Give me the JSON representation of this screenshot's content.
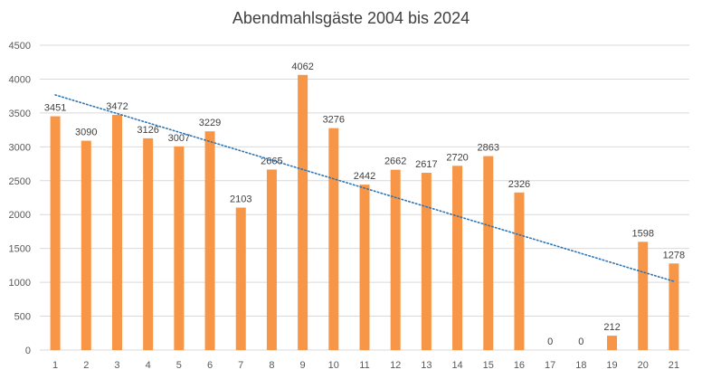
{
  "chart_data": {
    "type": "bar",
    "title": "Abendmahlsgäste 2004 bis 2024",
    "xlabel": "",
    "ylabel": "",
    "categories": [
      "1",
      "2",
      "3",
      "4",
      "5",
      "6",
      "7",
      "8",
      "9",
      "10",
      "11",
      "12",
      "13",
      "14",
      "15",
      "16",
      "17",
      "18",
      "19",
      "20",
      "21"
    ],
    "values": [
      3451,
      3090,
      3472,
      3126,
      3007,
      3229,
      2103,
      2665,
      4062,
      3276,
      2442,
      2662,
      2617,
      2720,
      2863,
      2326,
      0,
      0,
      212,
      1598,
      1278
    ],
    "ylim": [
      0,
      4500
    ],
    "yticks": [
      0,
      500,
      1000,
      1500,
      2000,
      2500,
      3000,
      3500,
      4000,
      4500
    ],
    "grid": true,
    "trendline": {
      "type": "linear",
      "style": "dotted"
    },
    "colors": {
      "bar": "#F79646",
      "trend": "#2E75B6",
      "grid": "#D9D9D9"
    }
  }
}
